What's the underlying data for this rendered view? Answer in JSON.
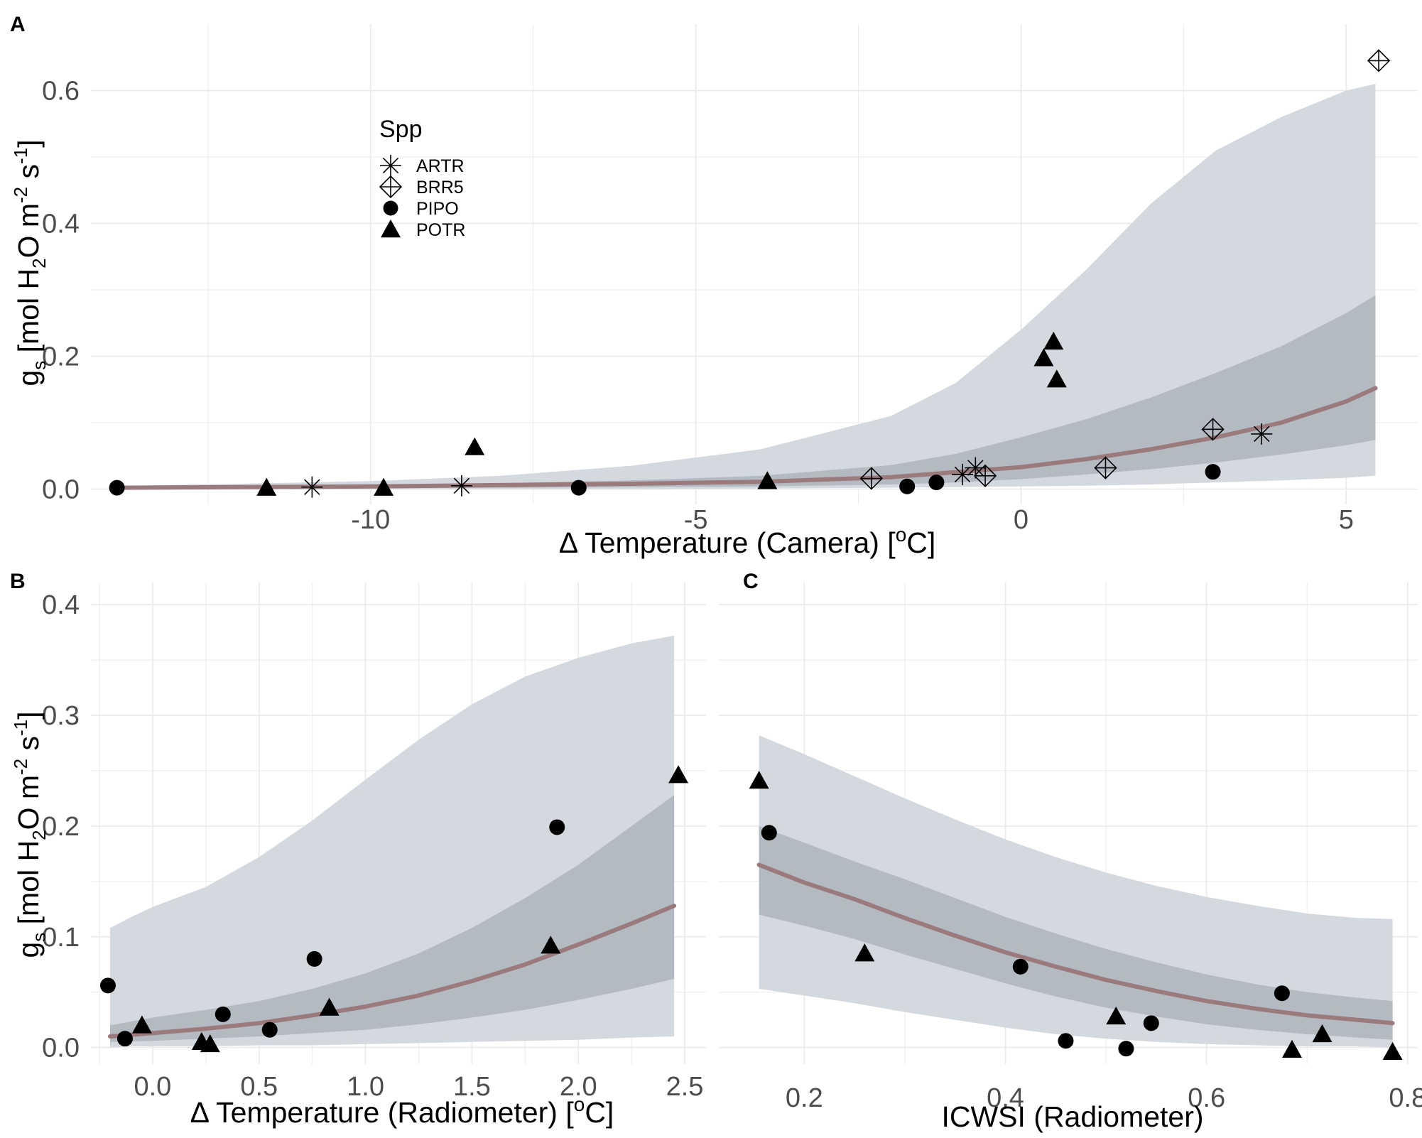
{
  "colors": {
    "band_outer": "#d4d9df",
    "band_inner": "#b4bac2",
    "fit_line": "#9a7a7c",
    "grid": "#ebebeb",
    "points": "#000000"
  },
  "legend": {
    "title": "Spp",
    "items": [
      {
        "label": "ARTR",
        "shape": "asterisk"
      },
      {
        "label": "BRR5",
        "shape": "diamond-plus"
      },
      {
        "label": "PIPO",
        "shape": "circle"
      },
      {
        "label": "POTR",
        "shape": "triangle"
      }
    ]
  },
  "chart_data": [
    {
      "panel": "A",
      "type": "scatter",
      "xlabel": "Δ  Temperature (Camera)  [°C]",
      "xlabel_parts": {
        "pre": "Δ  Temperature (Camera)  [",
        "sup": "o",
        "post": "C]"
      },
      "ylabel": "gs  [mol  H2O  m-2 s-1]",
      "xlim": [
        -14.3,
        6.1
      ],
      "ylim": [
        -0.023,
        0.7
      ],
      "xticks": [
        -10,
        -5,
        0,
        5
      ],
      "xtick_labels": [
        "-10",
        "-5",
        "0",
        "5"
      ],
      "xgrid_minor": [
        -12.5,
        -7.5,
        -2.5,
        2.5
      ],
      "yticks": [
        0.0,
        0.2,
        0.4,
        0.6
      ],
      "ytick_labels": [
        "0.0",
        "0.2",
        "0.4",
        "0.6"
      ],
      "ygrid_minor": [
        0.1,
        0.3,
        0.5
      ],
      "fit": {
        "x": [
          -13.8,
          -12,
          -10,
          -8,
          -6,
          -4,
          -2,
          0,
          1,
          2,
          3,
          4,
          5,
          5.45
        ],
        "y": [
          0.002,
          0.003,
          0.004,
          0.006,
          0.008,
          0.011,
          0.018,
          0.033,
          0.045,
          0.06,
          0.078,
          0.1,
          0.132,
          0.152
        ]
      },
      "band_inner": {
        "x": [
          -13.8,
          -12,
          -10,
          -8,
          -6,
          -4,
          -2,
          -1,
          0,
          1,
          2,
          3,
          4,
          5,
          5.45
        ],
        "lower": [
          0.001,
          0.001,
          0.002,
          0.002,
          0.003,
          0.004,
          0.007,
          0.01,
          0.015,
          0.022,
          0.03,
          0.04,
          0.052,
          0.066,
          0.074
        ],
        "upper": [
          0.004,
          0.005,
          0.007,
          0.009,
          0.013,
          0.02,
          0.036,
          0.053,
          0.078,
          0.105,
          0.138,
          0.175,
          0.215,
          0.265,
          0.292
        ]
      },
      "band_outer": {
        "x": [
          -13.8,
          -12,
          -10,
          -8,
          -6,
          -4,
          -2,
          -1,
          0,
          1,
          2,
          3,
          4,
          5,
          5.45
        ],
        "lower": [
          0.0,
          0.0,
          0.0,
          0.0,
          0.0,
          0.001,
          0.002,
          0.003,
          0.004,
          0.005,
          0.007,
          0.01,
          0.013,
          0.017,
          0.02
        ],
        "upper": [
          0.005,
          0.008,
          0.012,
          0.02,
          0.035,
          0.06,
          0.11,
          0.16,
          0.24,
          0.33,
          0.43,
          0.51,
          0.56,
          0.6,
          0.61
        ]
      },
      "series": [
        {
          "name": "ARTR",
          "shape": "asterisk",
          "x": [
            -10.9,
            -8.6,
            -0.9,
            -0.7,
            3.7
          ],
          "y": [
            0.003,
            0.005,
            0.022,
            0.032,
            0.083
          ]
        },
        {
          "name": "BRR5",
          "shape": "diamond-plus",
          "x": [
            -2.3,
            -0.55,
            1.3,
            2.95,
            5.5
          ],
          "y": [
            0.016,
            0.02,
            0.032,
            0.09,
            0.645
          ]
        },
        {
          "name": "PIPO",
          "shape": "circle",
          "x": [
            -13.9,
            -6.8,
            -1.75,
            -1.3,
            2.95
          ],
          "y": [
            0.002,
            0.002,
            0.004,
            0.01,
            0.026
          ]
        },
        {
          "name": "POTR",
          "shape": "triangle",
          "x": [
            -11.6,
            -9.8,
            -8.4,
            -3.9,
            0.35,
            0.5,
            0.55
          ],
          "y": [
            0.002,
            0.002,
            0.063,
            0.012,
            0.197,
            0.222,
            0.165
          ]
        }
      ]
    },
    {
      "panel": "B",
      "type": "scatter",
      "xlabel": "Δ  Temperature (Radiometer)  [°C]",
      "xlabel_parts": {
        "pre": "Δ  Temperature (Radiometer)  [",
        "sup": "o",
        "post": "C]"
      },
      "ylabel": "gs  [mol  H2O  m-2 s-1]",
      "xlim": [
        -0.29,
        2.6
      ],
      "ylim": [
        -0.015,
        0.42
      ],
      "xticks": [
        0.0,
        0.5,
        1.0,
        1.5,
        2.0,
        2.5
      ],
      "xtick_labels": [
        "0.0",
        "0.5",
        "1.0",
        "1.5",
        "2.0",
        "2.5"
      ],
      "xgrid_minor": [
        -0.25,
        0.25,
        0.75,
        1.25,
        1.75,
        2.25
      ],
      "yticks": [
        0.0,
        0.1,
        0.2,
        0.3,
        0.4
      ],
      "ytick_labels": [
        "0.0",
        "0.1",
        "0.2",
        "0.3",
        "0.4"
      ],
      "ygrid_minor": [
        0.05,
        0.15,
        0.25,
        0.35
      ],
      "fit": {
        "x": [
          -0.2,
          0,
          0.25,
          0.5,
          0.75,
          1,
          1.25,
          1.5,
          1.75,
          2,
          2.25,
          2.45
        ],
        "y": [
          0.01,
          0.013,
          0.017,
          0.022,
          0.029,
          0.037,
          0.047,
          0.06,
          0.075,
          0.093,
          0.112,
          0.128
        ]
      },
      "band_inner": {
        "x": [
          -0.2,
          0,
          0.25,
          0.5,
          0.75,
          1,
          1.25,
          1.5,
          1.75,
          2,
          2.25,
          2.45
        ],
        "lower": [
          0.005,
          0.006,
          0.008,
          0.01,
          0.013,
          0.016,
          0.021,
          0.027,
          0.034,
          0.043,
          0.053,
          0.062
        ],
        "upper": [
          0.02,
          0.027,
          0.034,
          0.042,
          0.053,
          0.067,
          0.085,
          0.108,
          0.135,
          0.165,
          0.2,
          0.228
        ]
      },
      "band_outer": {
        "x": [
          -0.2,
          -0.1,
          0,
          0.25,
          0.5,
          0.75,
          1,
          1.25,
          1.5,
          1.75,
          2,
          2.25,
          2.45
        ],
        "lower": [
          0.0,
          0.001,
          0.001,
          0.001,
          0.002,
          0.002,
          0.003,
          0.004,
          0.005,
          0.006,
          0.007,
          0.009,
          0.01
        ],
        "upper": [
          0.108,
          0.118,
          0.127,
          0.145,
          0.172,
          0.205,
          0.242,
          0.278,
          0.31,
          0.335,
          0.352,
          0.365,
          0.372
        ]
      },
      "series": [
        {
          "name": "PIPO",
          "shape": "circle",
          "x": [
            -0.21,
            -0.13,
            0.33,
            0.55,
            0.76,
            1.9
          ],
          "y": [
            0.056,
            0.008,
            0.03,
            0.016,
            0.08,
            0.199
          ]
        },
        {
          "name": "POTR",
          "shape": "triangle",
          "x": [
            -0.05,
            0.23,
            0.27,
            0.83,
            1.87,
            2.47
          ],
          "y": [
            0.02,
            0.005,
            0.003,
            0.036,
            0.092,
            0.246
          ]
        }
      ]
    },
    {
      "panel": "C",
      "type": "scatter",
      "xlabel": "ICWSI   (Radiometer)",
      "xlim": [
        0.115,
        0.81
      ],
      "ylim": [
        -0.015,
        0.42
      ],
      "xticks": [
        0.2,
        0.4,
        0.6,
        0.8
      ],
      "xtick_labels": [
        "0.2",
        "0.4",
        "0.6",
        "0.8"
      ],
      "xgrid_minor": [
        0.3,
        0.5,
        0.7
      ],
      "yticks": [
        0.0,
        0.1,
        0.2,
        0.3,
        0.4
      ],
      "ygrid_minor": [
        0.05,
        0.15,
        0.25,
        0.35
      ],
      "fit": {
        "x": [
          0.155,
          0.2,
          0.25,
          0.3,
          0.35,
          0.4,
          0.45,
          0.5,
          0.55,
          0.6,
          0.65,
          0.7,
          0.75,
          0.785
        ],
        "y": [
          0.165,
          0.149,
          0.134,
          0.117,
          0.101,
          0.086,
          0.073,
          0.061,
          0.051,
          0.042,
          0.035,
          0.029,
          0.025,
          0.022
        ]
      },
      "band_inner": {
        "x": [
          0.155,
          0.2,
          0.25,
          0.3,
          0.35,
          0.4,
          0.45,
          0.5,
          0.55,
          0.6,
          0.65,
          0.7,
          0.75,
          0.785
        ],
        "lower": [
          0.12,
          0.11,
          0.098,
          0.084,
          0.071,
          0.058,
          0.046,
          0.036,
          0.028,
          0.021,
          0.016,
          0.012,
          0.009,
          0.007
        ],
        "upper": [
          0.2,
          0.185,
          0.168,
          0.152,
          0.135,
          0.118,
          0.103,
          0.089,
          0.077,
          0.066,
          0.057,
          0.05,
          0.045,
          0.042
        ]
      },
      "band_outer": {
        "x": [
          0.155,
          0.2,
          0.25,
          0.3,
          0.35,
          0.4,
          0.45,
          0.5,
          0.55,
          0.6,
          0.65,
          0.7,
          0.75,
          0.785
        ],
        "lower": [
          0.053,
          0.047,
          0.04,
          0.032,
          0.025,
          0.018,
          0.012,
          0.008,
          0.005,
          0.003,
          0.002,
          0.001,
          0.001,
          0.0
        ],
        "upper": [
          0.282,
          0.265,
          0.245,
          0.225,
          0.206,
          0.188,
          0.172,
          0.158,
          0.146,
          0.136,
          0.128,
          0.121,
          0.117,
          0.116
        ]
      },
      "series": [
        {
          "name": "PIPO",
          "shape": "circle",
          "x": [
            0.165,
            0.415,
            0.46,
            0.52,
            0.545,
            0.675
          ],
          "y": [
            0.194,
            0.073,
            0.006,
            -0.001,
            0.022,
            0.049
          ]
        },
        {
          "name": "POTR",
          "shape": "triangle",
          "x": [
            0.155,
            0.26,
            0.51,
            0.685,
            0.715,
            0.785
          ],
          "y": [
            0.241,
            0.085,
            0.028,
            -0.002,
            0.012,
            -0.004
          ]
        }
      ]
    }
  ]
}
